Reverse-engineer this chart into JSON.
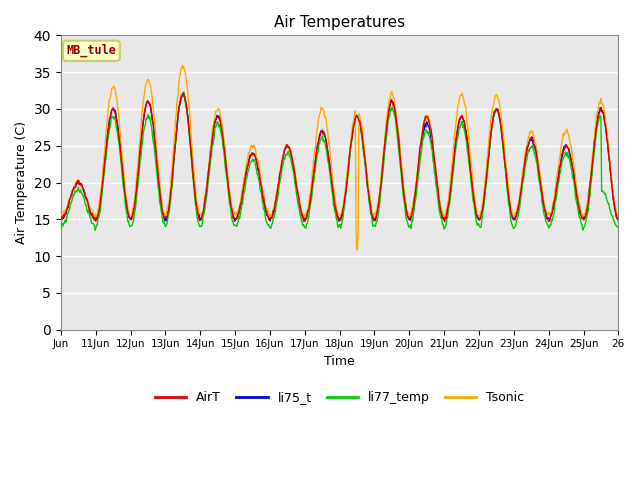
{
  "title": "Air Temperatures",
  "xlabel": "Time",
  "ylabel": "Air Temperature (C)",
  "ylim": [
    0,
    40
  ],
  "yticks": [
    0,
    5,
    10,
    15,
    20,
    25,
    30,
    35,
    40
  ],
  "fig_bg_color": "#ffffff",
  "plot_bg_color": "#e8e8e8",
  "annotation_text": "MB_tule",
  "annotation_bg": "#ffffcc",
  "annotation_border": "#cccc66",
  "annotation_text_color": "#990000",
  "line_colors": {
    "AirT": "#dd0000",
    "li75_t": "#0000dd",
    "li77_temp": "#00cc00",
    "Tsonic": "#ffaa00"
  },
  "legend_labels": [
    "AirT",
    "li75_t",
    "li77_temp",
    "Tsonic"
  ],
  "x_tick_labels": [
    "Jun",
    "11Jun",
    "12Jun",
    "13Jun",
    "14Jun",
    "15Jun",
    "16Jun",
    "17Jun",
    "18Jun",
    "19Jun",
    "20Jun",
    "21Jun",
    "22Jun",
    "23Jun",
    "24Jun",
    "25Jun",
    "26"
  ],
  "num_days": 16,
  "grid_color": "#ffffff",
  "grid_linewidth": 1.0
}
